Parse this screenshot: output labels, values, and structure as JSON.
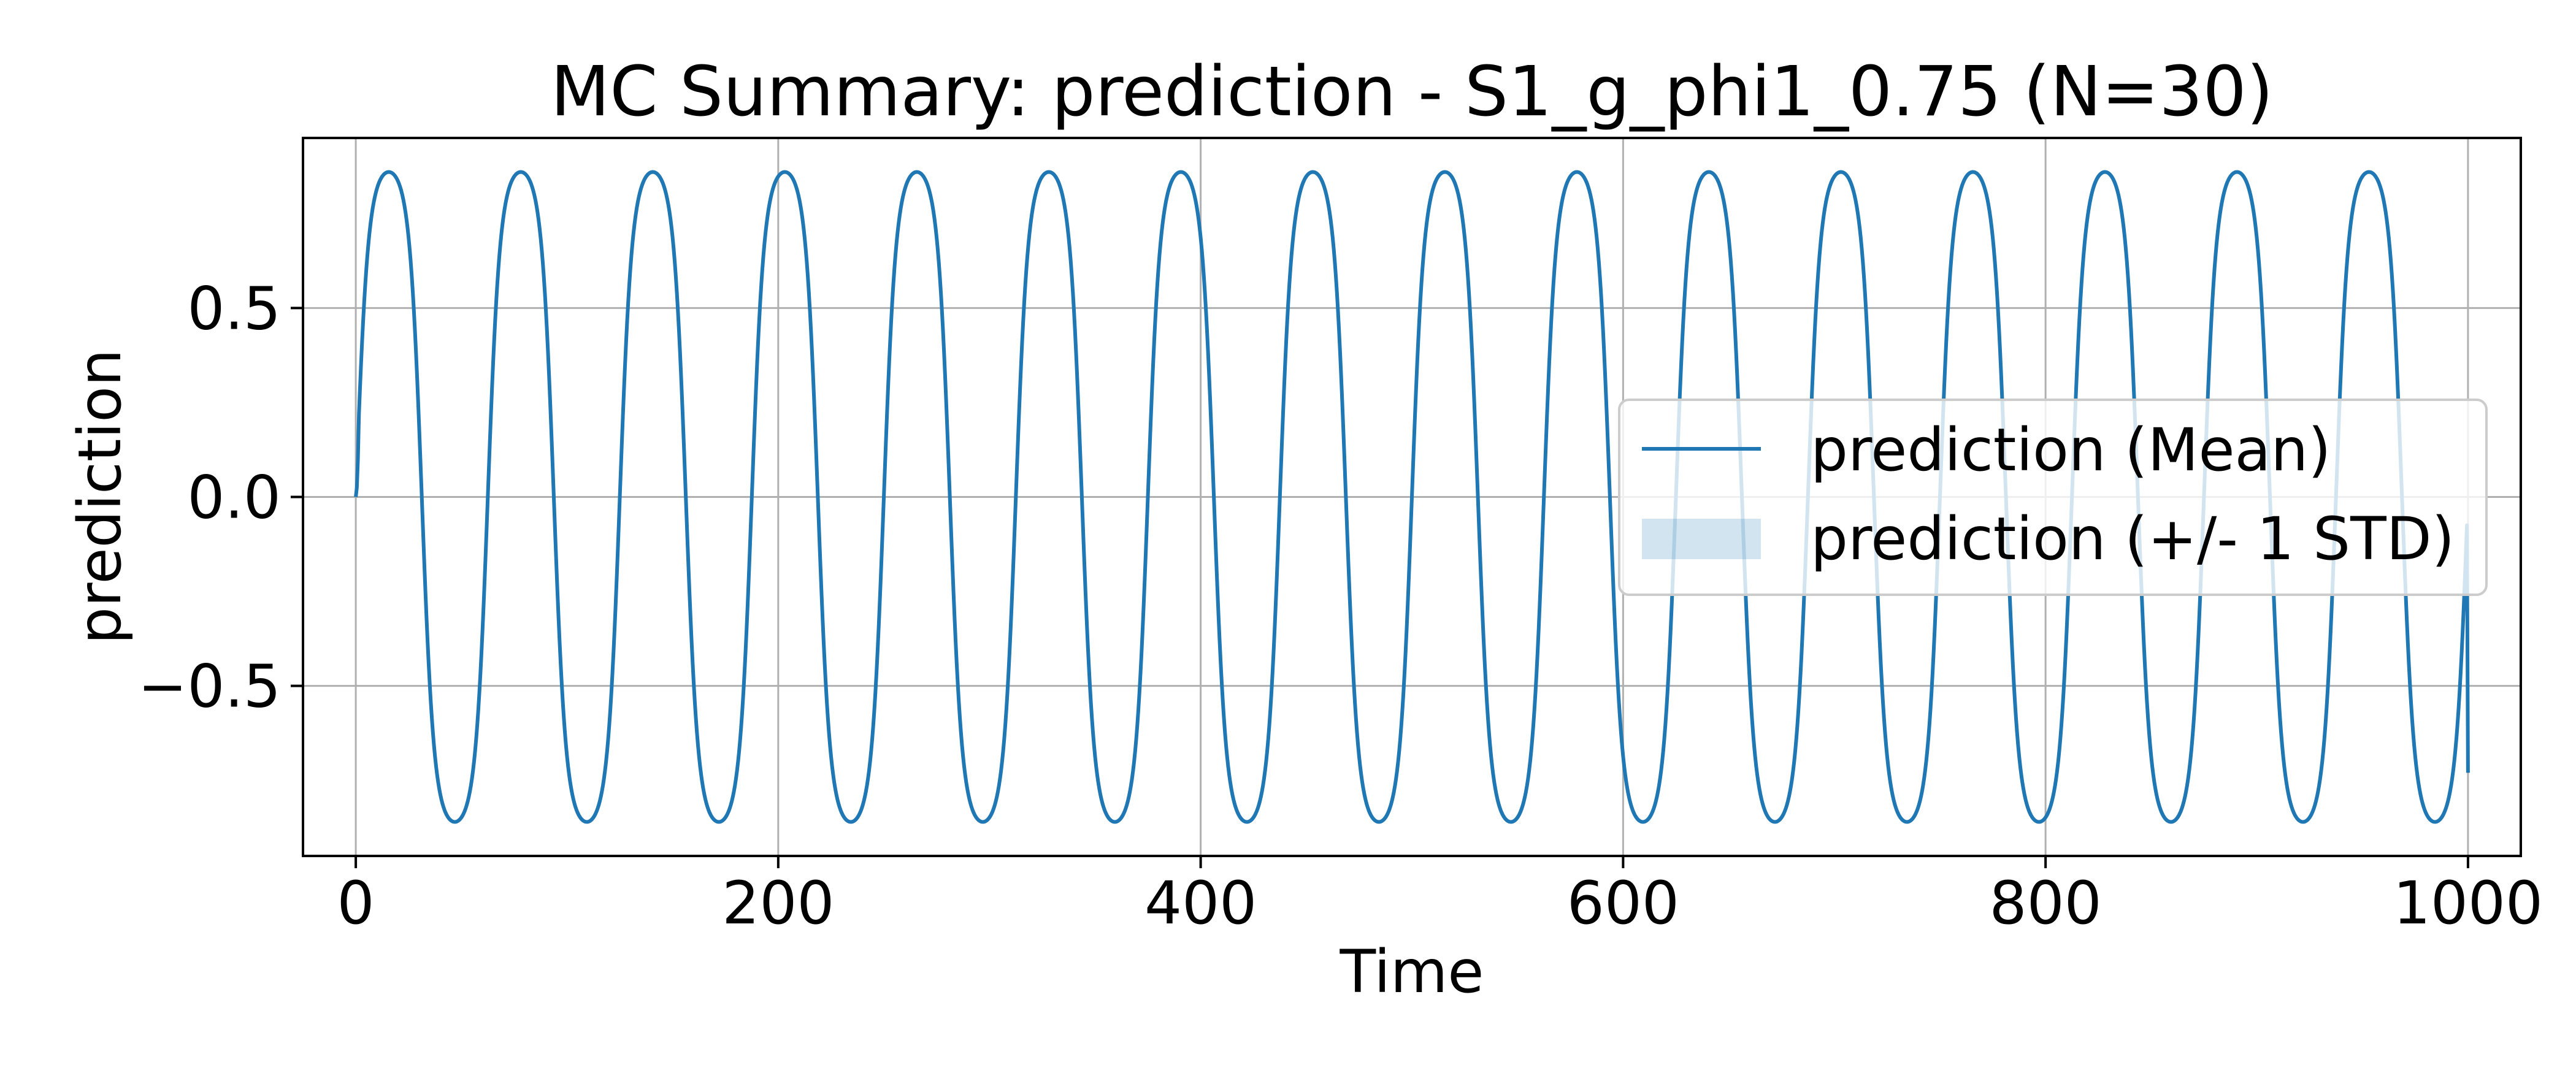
{
  "chart_data": {
    "type": "line",
    "title": "MC Summary: prediction - S1_g_phi1_0.75 (N=30)",
    "xlabel": "Time",
    "ylabel": "prediction",
    "xlim": [
      -25,
      1025
    ],
    "ylim": [
      -0.95,
      0.95
    ],
    "x_ticks": [
      0,
      200,
      400,
      600,
      800,
      1000
    ],
    "x_tick_labels": [
      "0",
      "200",
      "400",
      "600",
      "800",
      "1000"
    ],
    "y_ticks": [
      -0.5,
      0.0,
      0.5
    ],
    "y_tick_labels": [
      "−0.5",
      "0.0",
      "0.5"
    ],
    "grid": true,
    "legend_placement": "center-right",
    "series": [
      {
        "name": "prediction (Mean)",
        "kind": "line",
        "color": "#1f77b4",
        "signal": {
          "t_start": 0,
          "t_end": 1000,
          "period": 62.5,
          "amplitude": 0.86,
          "initial_value": 0.0,
          "final_value": -0.73
        }
      },
      {
        "name": "prediction (+/- 1 STD)",
        "kind": "band",
        "color": "#1f77b4",
        "opacity": 0.2,
        "std": 0.0
      }
    ]
  }
}
